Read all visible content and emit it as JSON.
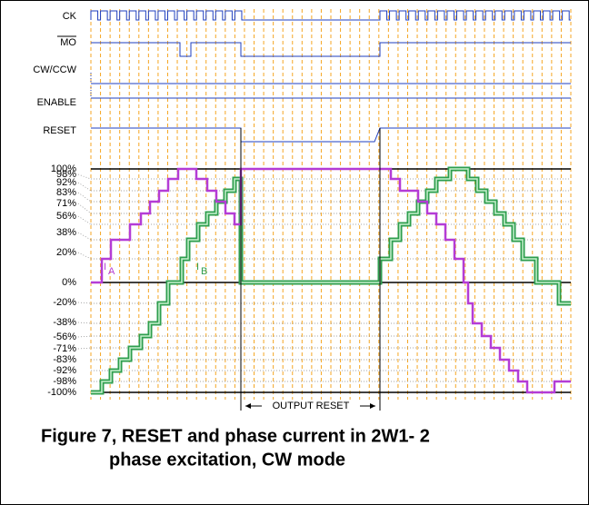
{
  "signals": [
    "CK",
    "MO",
    "CW/CCW",
    "ENABLE",
    "RESET"
  ],
  "levels": [
    "100%",
    "98%",
    "92%",
    "83%",
    "71%",
    "56%",
    "38%",
    "20%",
    "0%",
    "-20%",
    "-38%",
    "-56%",
    "-71%",
    "-83%",
    "-92%",
    "-98%",
    "-100%"
  ],
  "current_labels": [
    {
      "symbol": "I",
      "sub": "A"
    },
    {
      "symbol": "I",
      "sub": "B"
    }
  ],
  "annotation": "OUTPUT RESET",
  "caption": [
    "Figure 7, RESET and phase current in 2W1- 2",
    "phase excitation, CW mode"
  ]
}
